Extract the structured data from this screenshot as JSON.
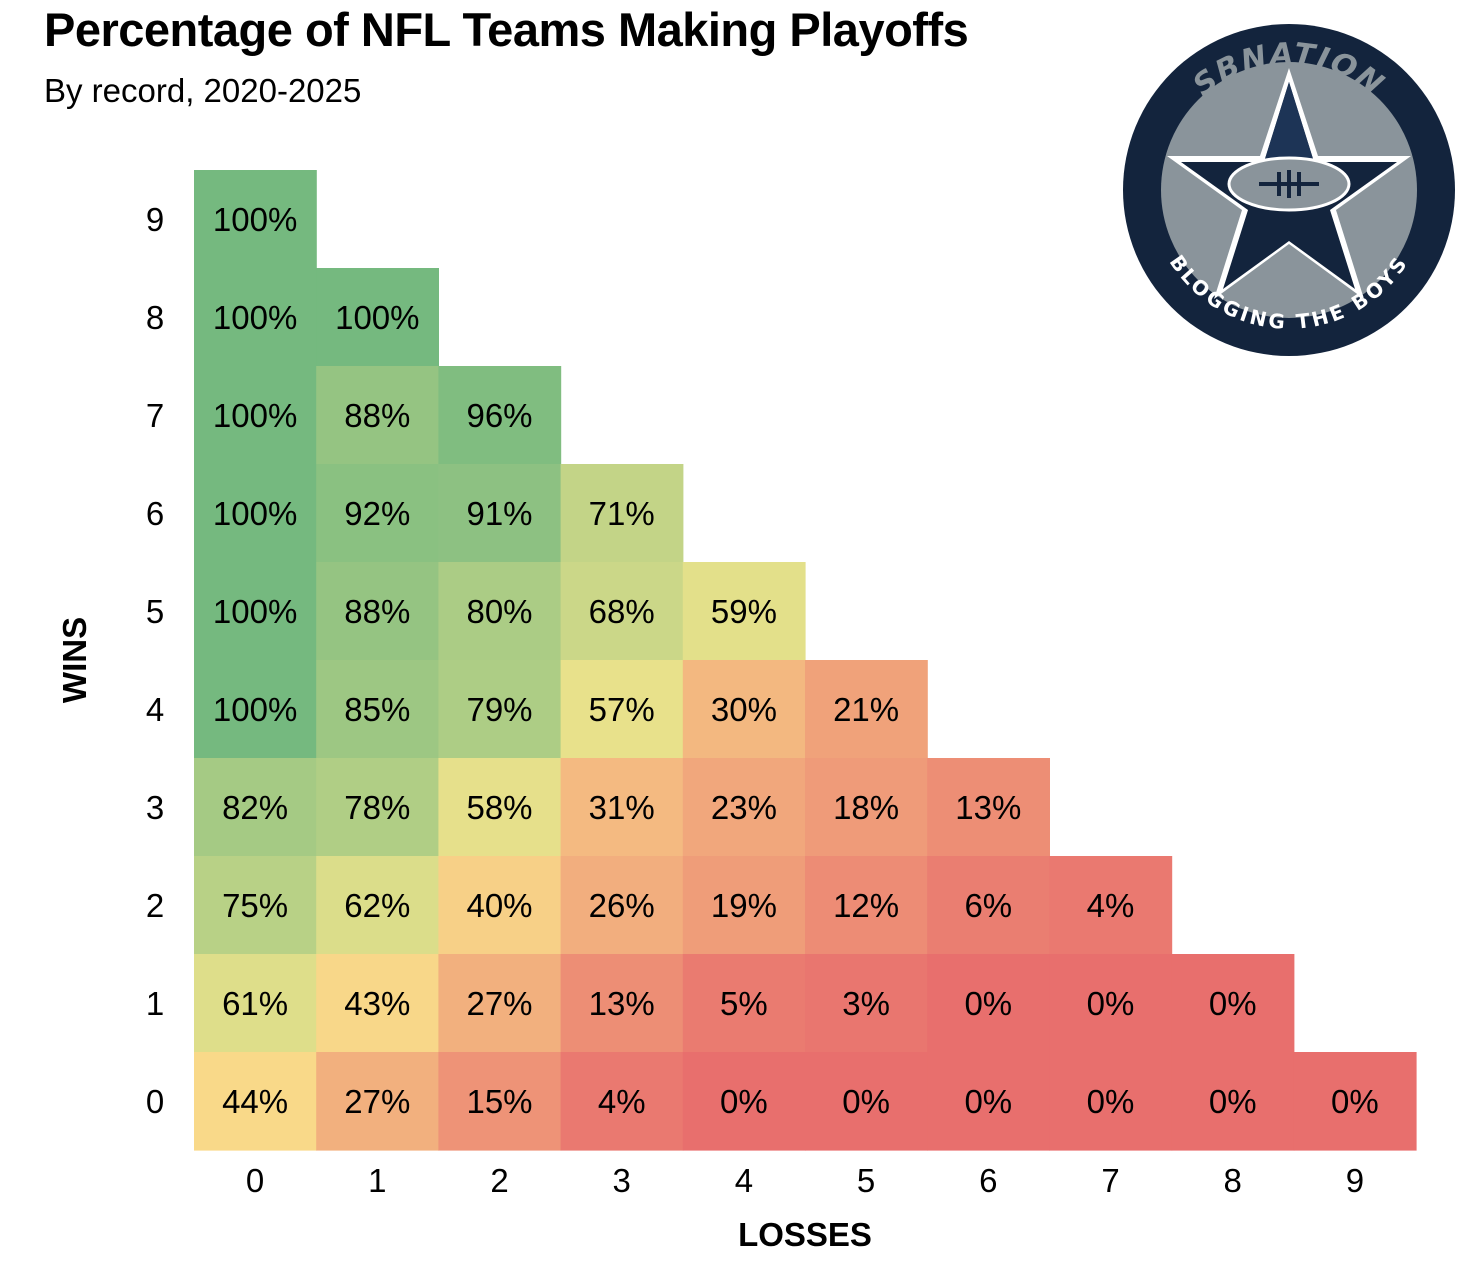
{
  "header": {
    "title": "Percentage of NFL Teams Making Playoffs",
    "subtitle": "By record, 2020-2025"
  },
  "logo": {
    "top_text": "SBNATION",
    "bottom_text": "BLOGGING THE BOYS",
    "colors": {
      "navy": "#13243d",
      "gray": "#8a949b",
      "white": "#ffffff"
    }
  },
  "chart_data": {
    "type": "heatmap",
    "xlabel": "LOSSES",
    "ylabel": "WINS",
    "x": [
      0,
      1,
      2,
      3,
      4,
      5,
      6,
      7,
      8,
      9
    ],
    "y": [
      9,
      8,
      7,
      6,
      5,
      4,
      3,
      2,
      1,
      0
    ],
    "unit": "%",
    "rows": [
      {
        "wins": 9,
        "values": [
          100
        ]
      },
      {
        "wins": 8,
        "values": [
          100,
          100
        ]
      },
      {
        "wins": 7,
        "values": [
          100,
          88,
          96
        ]
      },
      {
        "wins": 6,
        "values": [
          100,
          92,
          91,
          71
        ]
      },
      {
        "wins": 5,
        "values": [
          100,
          88,
          80,
          68,
          59
        ]
      },
      {
        "wins": 4,
        "values": [
          100,
          85,
          79,
          57,
          30,
          21
        ]
      },
      {
        "wins": 3,
        "values": [
          82,
          78,
          58,
          31,
          23,
          18,
          13
        ]
      },
      {
        "wins": 2,
        "values": [
          75,
          62,
          40,
          26,
          19,
          12,
          6,
          4
        ]
      },
      {
        "wins": 1,
        "values": [
          61,
          43,
          27,
          13,
          5,
          3,
          0,
          0,
          0
        ]
      },
      {
        "wins": 0,
        "values": [
          44,
          27,
          15,
          4,
          0,
          0,
          0,
          0,
          0,
          0
        ]
      }
    ],
    "color_scale": {
      "low": "#e86f6d",
      "mid": "#fbe88d",
      "high": "#75b97f"
    },
    "legend": "none",
    "grid": false
  }
}
